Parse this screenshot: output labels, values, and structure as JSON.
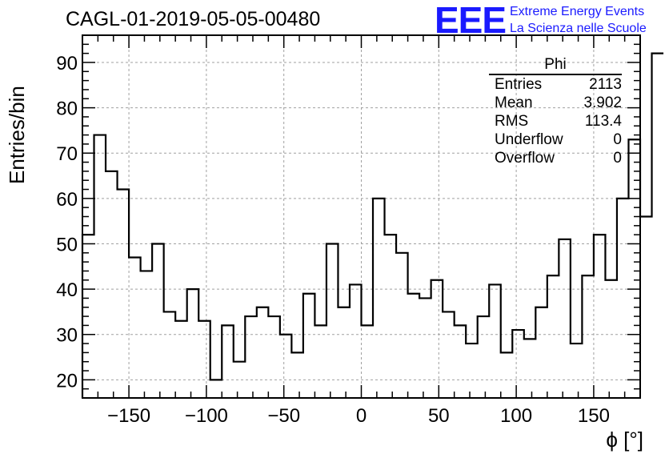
{
  "title": "CAGL-01-2019-05-05-00480",
  "logo": {
    "text": "EEE",
    "line1": "Extreme Energy Events",
    "line2": "La Scienza nelle Scuole",
    "color": "#1a1aff"
  },
  "stats": {
    "title": "Phi",
    "rows": [
      {
        "label": "Entries",
        "value": "2113"
      },
      {
        "label": "Mean",
        "value": "3.902"
      },
      {
        "label": "RMS",
        "value": "113.4"
      },
      {
        "label": "Underflow",
        "value": "0"
      },
      {
        "label": "Overflow",
        "value": "0"
      }
    ]
  },
  "chart_data": {
    "type": "bar",
    "style": "step-histogram",
    "xlabel": "ϕ [°]",
    "ylabel": "Entries/bin",
    "xlim": [
      -180,
      180
    ],
    "ylim": [
      16,
      96
    ],
    "bin_width": 7.5,
    "x_ticks": [
      -150,
      -100,
      -50,
      0,
      50,
      100,
      150
    ],
    "x_tick_labels": [
      "−150",
      "−100",
      "−50",
      "0",
      "50",
      "100",
      "150"
    ],
    "y_ticks": [
      20,
      30,
      40,
      50,
      60,
      70,
      80,
      90
    ],
    "grid": true,
    "values": [
      52,
      74,
      66,
      62,
      47,
      44,
      50,
      35,
      33,
      40,
      33,
      20,
      32,
      24,
      34,
      36,
      34,
      30,
      26,
      39,
      32,
      50,
      36,
      41,
      32,
      60,
      52,
      48,
      39,
      38,
      42,
      35,
      32,
      28,
      34,
      41,
      26,
      31,
      29,
      36,
      43,
      51,
      28,
      43,
      52,
      42,
      60,
      73,
      56,
      92
    ]
  }
}
